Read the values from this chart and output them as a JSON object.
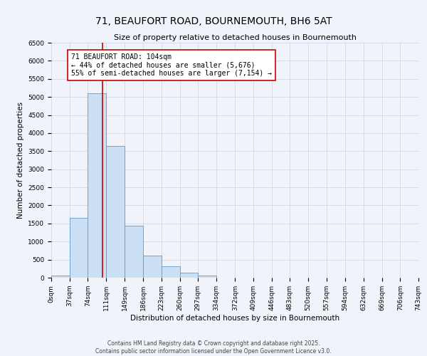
{
  "title": "71, BEAUFORT ROAD, BOURNEMOUTH, BH6 5AT",
  "subtitle": "Size of property relative to detached houses in Bournemouth",
  "xlabel": "Distribution of detached houses by size in Bournemouth",
  "ylabel": "Number of detached properties",
  "bar_edges": [
    0,
    37,
    74,
    111,
    149,
    186,
    223,
    260,
    297,
    334,
    372,
    409,
    446,
    483,
    520,
    557,
    594,
    632,
    669,
    706,
    743
  ],
  "bar_heights": [
    50,
    1650,
    5100,
    3650,
    1430,
    620,
    310,
    140,
    50,
    0,
    0,
    0,
    0,
    0,
    0,
    0,
    0,
    0,
    0,
    0
  ],
  "bar_color": "#cce0f5",
  "bar_edgecolor": "#5b9bd5",
  "grid_color": "#d0d8e8",
  "background_color": "#f0f4fa",
  "property_size": 104,
  "red_line_color": "#cc0000",
  "annotation_title": "71 BEAUFORT ROAD: 104sqm",
  "annotation_line1": "← 44% of detached houses are smaller (5,676)",
  "annotation_line2": "55% of semi-detached houses are larger (7,154) →",
  "annotation_box_color": "#ffffff",
  "annotation_box_edgecolor": "#cc0000",
  "ylim": [
    0,
    6500
  ],
  "yticks": [
    0,
    500,
    1000,
    1500,
    2000,
    2500,
    3000,
    3500,
    4000,
    4500,
    5000,
    5500,
    6000,
    6500
  ],
  "xtick_labels": [
    "0sqm",
    "37sqm",
    "74sqm",
    "111sqm",
    "149sqm",
    "186sqm",
    "223sqm",
    "260sqm",
    "297sqm",
    "334sqm",
    "372sqm",
    "409sqm",
    "446sqm",
    "483sqm",
    "520sqm",
    "557sqm",
    "594sqm",
    "632sqm",
    "669sqm",
    "706sqm",
    "743sqm"
  ],
  "footer_line1": "Contains HM Land Registry data © Crown copyright and database right 2025.",
  "footer_line2": "Contains public sector information licensed under the Open Government Licence v3.0.",
  "title_fontsize": 10,
  "subtitle_fontsize": 8,
  "axis_label_fontsize": 7.5,
  "tick_fontsize": 6.5,
  "annotation_fontsize": 7,
  "footer_fontsize": 5.5
}
